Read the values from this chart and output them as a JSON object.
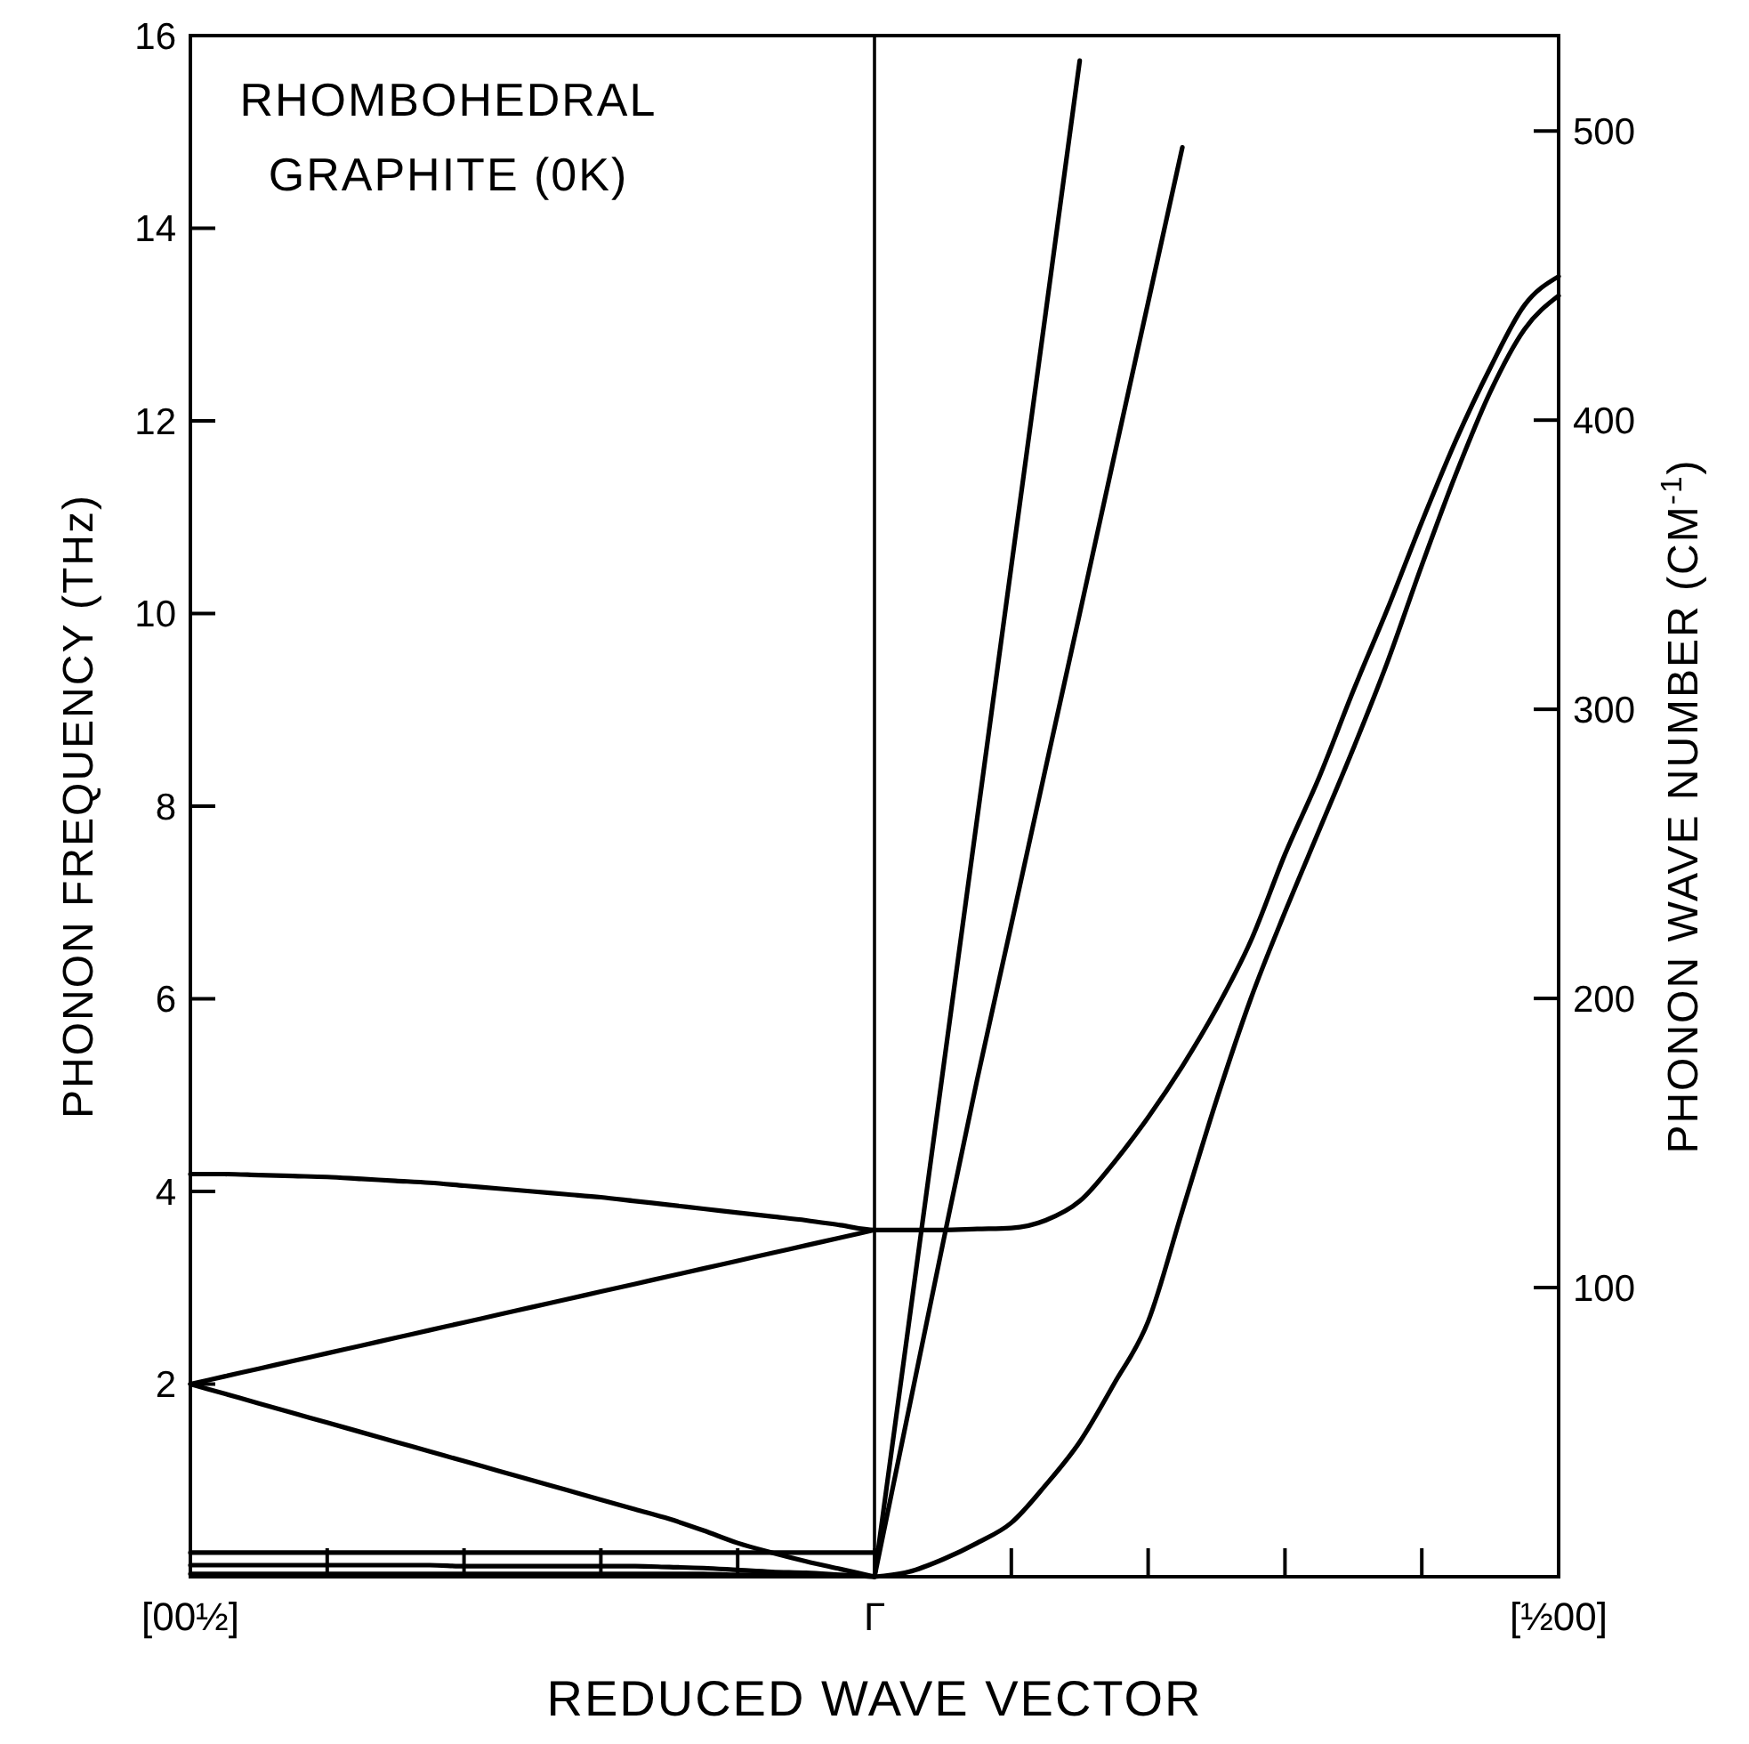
{
  "chart_data": {
    "type": "line",
    "xlabel": "REDUCED WAVE VECTOR",
    "ylabel": "PHONON FREQUENCY  (THz)",
    "y2label": "PHONON WAVE NUMBER  (CM$^{-1}$)",
    "annotations": [
      "RHOMBOHEDRAL",
      "GRAPHITE  (0K)"
    ],
    "categories": [
      "[00½]",
      null,
      null,
      null,
      null,
      null,
      null,
      null,
      null,
      null,
      null,
      null,
      null,
      null,
      null,
      null,
      null,
      null,
      null,
      null,
      "Γ",
      null,
      null,
      null,
      null,
      null,
      null,
      null,
      null,
      null,
      null,
      null,
      null,
      null,
      null,
      null,
      null,
      null,
      null,
      null,
      "[½00]"
    ],
    "ylim": [
      0,
      16
    ],
    "yticks": [
      2,
      4,
      6,
      8,
      10,
      12,
      14,
      16
    ],
    "y2lim": [
      0,
      533
    ],
    "y2ticks": [
      100,
      200,
      300,
      400,
      500
    ],
    "grid": false,
    "marker": "none",
    "line_style": "solid",
    "ref_lines": [
      {
        "axis": "x",
        "value": "Γ",
        "color": "#000000"
      }
    ],
    "series": [
      {
        "color": "#000000",
        "values": [
          4.18,
          4.18,
          4.17,
          4.16,
          4.15,
          4.13,
          4.11,
          4.09,
          4.06,
          4.03,
          4.0,
          3.97,
          3.94,
          3.9,
          3.86,
          3.82,
          3.78,
          3.74,
          3.7,
          3.65,
          3.6,
          3.6,
          3.6,
          3.61,
          3.62,
          3.7,
          3.9,
          4.3,
          4.77,
          5.3,
          5.9,
          6.6,
          7.5,
          8.3,
          9.2,
          10.05,
          10.95,
          11.8,
          12.55,
          13.2,
          13.5
        ]
      },
      {
        "color": "#000000",
        "values": [
          null,
          null,
          null,
          null,
          null,
          null,
          null,
          null,
          null,
          null,
          null,
          null,
          null,
          null,
          null,
          null,
          null,
          null,
          null,
          null,
          0,
          0.05,
          0.18,
          0.35,
          0.56,
          0.95,
          1.4,
          2.0,
          2.65,
          3.8,
          4.95,
          6.0,
          6.9,
          7.75,
          8.6,
          9.5,
          10.5,
          11.45,
          12.3,
          12.95,
          13.3
        ]
      },
      {
        "color": "#000000",
        "values": [
          2.0,
          2.08,
          2.16,
          2.24,
          2.32,
          2.4,
          2.48,
          2.56,
          2.64,
          2.72,
          2.8,
          2.88,
          2.96,
          3.04,
          3.12,
          3.2,
          3.28,
          3.36,
          3.44,
          3.52,
          3.6,
          null,
          null,
          null,
          null,
          null,
          null,
          null,
          null,
          null,
          null,
          null,
          null,
          null,
          null,
          null,
          null,
          null,
          null,
          null,
          null
        ]
      },
      {
        "color": "#000000",
        "values": [
          2.0,
          1.9,
          1.8,
          1.7,
          1.6,
          1.5,
          1.4,
          1.3,
          1.2,
          1.1,
          1.0,
          0.9,
          0.8,
          0.7,
          0.6,
          0.48,
          0.35,
          0.25,
          0.16,
          0.08,
          0,
          null,
          null,
          null,
          null,
          null,
          null,
          null,
          null,
          null,
          null,
          null,
          null,
          null,
          null,
          null,
          null,
          null,
          null,
          null,
          null
        ]
      },
      {
        "color": "#000000",
        "values": [
          0.25,
          0.25,
          0.25,
          0.25,
          0.25,
          0.25,
          0.25,
          0.25,
          0.25,
          0.25,
          0.25,
          0.25,
          0.25,
          0.25,
          0.25,
          0.25,
          0.25,
          0.25,
          0.25,
          0.25,
          0.25,
          null,
          null,
          null,
          null,
          null,
          null,
          null,
          null,
          null,
          null,
          null,
          null,
          null,
          null,
          null,
          null,
          null,
          null,
          null,
          null
        ]
      },
      {
        "color": "#000000",
        "values": [
          0.12,
          0.12,
          0.12,
          0.12,
          0.12,
          0.12,
          0.12,
          0.12,
          0.11,
          0.11,
          0.11,
          0.11,
          0.11,
          0.11,
          0.1,
          0.09,
          0.07,
          0.05,
          0.04,
          0.02,
          0,
          null,
          null,
          null,
          null,
          null,
          null,
          null,
          null,
          null,
          null,
          null,
          null,
          null,
          null,
          null,
          null,
          null,
          null,
          null,
          null
        ]
      },
      {
        "color": "#000000",
        "values": [
          0.03,
          0.03,
          0.03,
          0.03,
          0.03,
          0.03,
          0.03,
          0.03,
          0.03,
          0.03,
          0.03,
          0.03,
          0.03,
          0.03,
          0.03,
          0.03,
          0.02,
          0.02,
          0.01,
          0.01,
          0,
          null,
          null,
          null,
          null,
          null,
          null,
          null,
          null,
          null,
          null,
          null,
          null,
          null,
          null,
          null,
          null,
          null,
          null,
          null,
          null
        ]
      },
      {
        "color": "#000000",
        "values": [
          null,
          null,
          null,
          null,
          null,
          null,
          null,
          null,
          null,
          null,
          null,
          null,
          null,
          null,
          null,
          null,
          null,
          null,
          null,
          null,
          0,
          2.62,
          5.25,
          7.87,
          10.49,
          13.11,
          15.74,
          null,
          null,
          null,
          null,
          null,
          null,
          null,
          null,
          null,
          null,
          null,
          null,
          null,
          null
        ]
      },
      {
        "color": "#000000",
        "values": [
          null,
          null,
          null,
          null,
          null,
          null,
          null,
          null,
          null,
          null,
          null,
          null,
          null,
          null,
          null,
          null,
          null,
          null,
          null,
          null,
          0,
          1.73,
          3.46,
          5.16,
          6.77,
          8.39,
          10.0,
          11.62,
          13.23,
          14.84,
          null,
          null,
          null,
          null,
          null,
          null,
          null,
          null,
          null,
          null,
          null
        ]
      }
    ]
  }
}
